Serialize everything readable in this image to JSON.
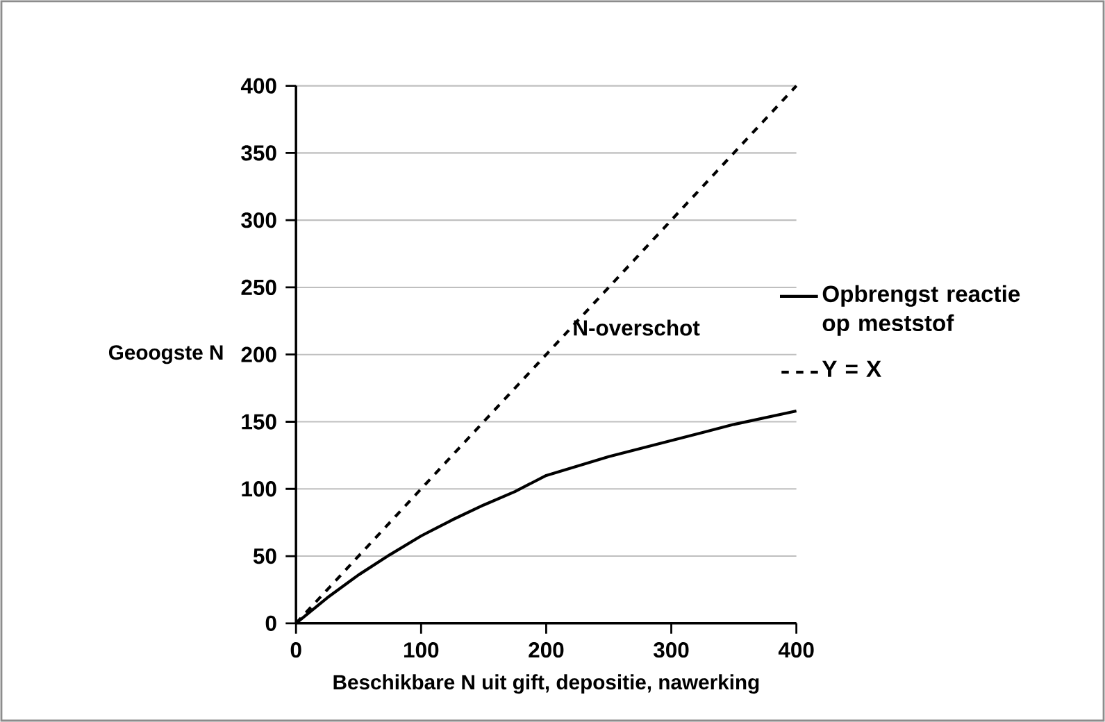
{
  "chart_data": {
    "type": "line",
    "xlabel": "Beschikbare N uit gift, depositie, nawerking",
    "ylabel": "Geoogste N",
    "xlim": [
      0,
      400
    ],
    "xticks": [
      0,
      100,
      200,
      300,
      400
    ],
    "ylim": [
      0,
      400
    ],
    "yticks": [
      0,
      50,
      100,
      150,
      200,
      250,
      300,
      350,
      400
    ],
    "grid": "y",
    "legend": "right",
    "annotations": [
      "N-overschot"
    ],
    "series": [
      {
        "name": "Opbrengst reactie op meststof",
        "color": "#000000",
        "line_style": "solid",
        "x": [
          0,
          25,
          50,
          75,
          100,
          125,
          150,
          175,
          200,
          250,
          300,
          350,
          400
        ],
        "values": [
          0,
          19,
          36,
          51,
          65,
          77,
          88,
          98,
          110,
          124,
          136,
          148,
          158
        ]
      },
      {
        "name": "Y = X",
        "color": "#000000",
        "line_style": "dashed",
        "x": [
          0,
          400
        ],
        "values": [
          0,
          400
        ]
      }
    ]
  }
}
